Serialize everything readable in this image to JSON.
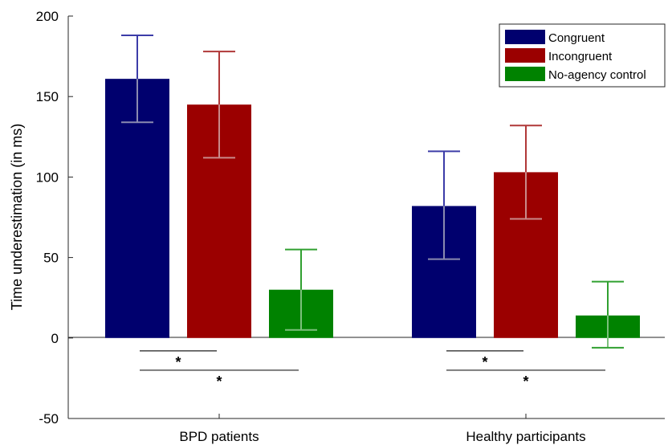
{
  "chart_data": {
    "type": "bar",
    "title": "",
    "xlabel": "",
    "ylabel": "Time underestimation (in ms)",
    "ylim": [
      -50,
      200
    ],
    "yticks": [
      -50,
      0,
      50,
      100,
      150,
      200
    ],
    "categories": [
      "BPD patients",
      "Healthy participants"
    ],
    "series": [
      {
        "name": "Congruent",
        "color": "#00006e",
        "values": [
          161,
          82
        ],
        "err_low": [
          134,
          49
        ],
        "err_high": [
          188,
          116
        ]
      },
      {
        "name": "Incongruent",
        "color": "#9b0000",
        "values": [
          145,
          103
        ],
        "err_low": [
          112,
          74
        ],
        "err_high": [
          178,
          132
        ]
      },
      {
        "name": "No-agency control",
        "color": "#008200",
        "values": [
          30,
          14
        ],
        "err_low": [
          5,
          -6
        ],
        "err_high": [
          55,
          35
        ]
      }
    ],
    "significance": [
      {
        "category": 0,
        "from_series": 0,
        "to_series": 1,
        "y": -8,
        "label": "*"
      },
      {
        "category": 0,
        "from_series": 0,
        "to_series": 2,
        "y": -20,
        "label": "*"
      },
      {
        "category": 1,
        "from_series": 0,
        "to_series": 1,
        "y": -8,
        "label": "*"
      },
      {
        "category": 1,
        "from_series": 0,
        "to_series": 2,
        "y": -20,
        "label": "*"
      }
    ],
    "legend_position": "top-right",
    "grid": false
  }
}
